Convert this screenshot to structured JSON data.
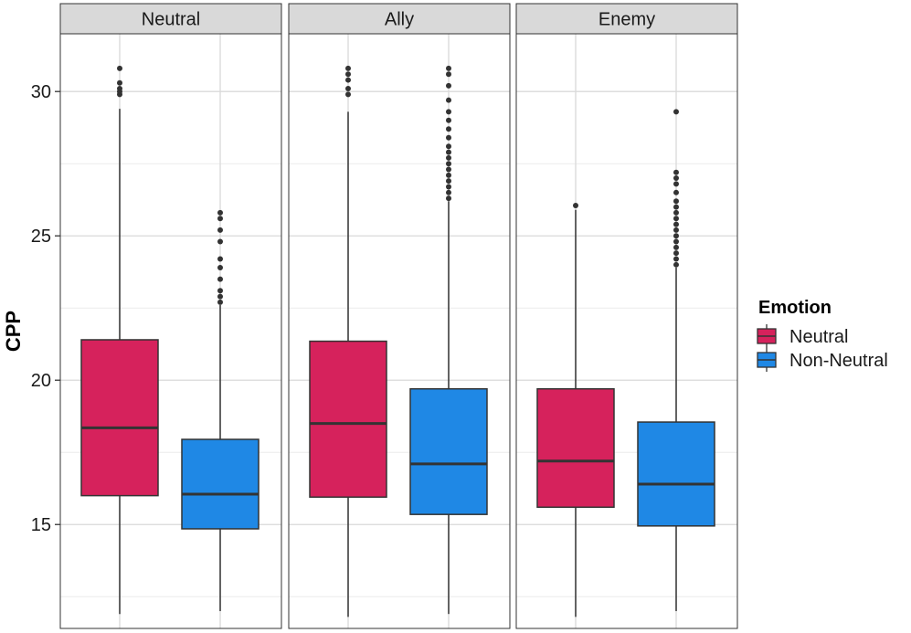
{
  "chart_data": {
    "type": "boxplot",
    "ylabel": "CPP",
    "xlabel": "",
    "ylim": [
      11.4,
      32.0
    ],
    "yticks": [
      15,
      20,
      25,
      30
    ],
    "grid": true,
    "legend": {
      "title": "Emotion",
      "position": "right",
      "entries": [
        {
          "name": "Neutral",
          "color": "#d6225c"
        },
        {
          "name": "Non-Neutral",
          "color": "#1f88e5"
        }
      ]
    },
    "colors": {
      "Neutral": "#d6225c",
      "Non-Neutral": "#1f88e5",
      "strip_background": "#d9d9d9",
      "grid": "#d9d9d9",
      "border": "#333333"
    },
    "panels": [
      {
        "label": "Neutral",
        "boxes": [
          {
            "group": "Neutral",
            "min": 11.9,
            "q1": 16.0,
            "median": 18.35,
            "q3": 21.4,
            "max": 29.4,
            "outliers": [
              29.9,
              30.0,
              30.1,
              30.3,
              30.8
            ]
          },
          {
            "group": "Non-Neutral",
            "min": 12.0,
            "q1": 14.85,
            "median": 16.05,
            "q3": 17.95,
            "max": 22.6,
            "outliers": [
              22.7,
              22.9,
              23.1,
              23.5,
              23.9,
              24.2,
              24.8,
              25.2,
              25.6,
              25.8
            ]
          }
        ]
      },
      {
        "label": "Ally",
        "boxes": [
          {
            "group": "Neutral",
            "min": 11.8,
            "q1": 15.95,
            "median": 18.5,
            "q3": 21.35,
            "max": 29.3,
            "outliers": [
              29.9,
              30.1,
              30.4,
              30.6,
              30.8
            ]
          },
          {
            "group": "Non-Neutral",
            "min": 11.9,
            "q1": 15.35,
            "median": 17.1,
            "q3": 19.7,
            "max": 26.2,
            "outliers": [
              26.3,
              26.5,
              26.7,
              26.9,
              27.1,
              27.3,
              27.5,
              27.7,
              27.9,
              28.1,
              28.4,
              28.7,
              29.0,
              29.3,
              29.7,
              30.2,
              30.6,
              30.8
            ]
          }
        ]
      },
      {
        "label": "Enemy",
        "boxes": [
          {
            "group": "Neutral",
            "min": 11.8,
            "q1": 15.6,
            "median": 17.2,
            "q3": 19.7,
            "max": 25.9,
            "outliers": [
              26.05
            ]
          },
          {
            "group": "Non-Neutral",
            "min": 12.0,
            "q1": 14.95,
            "median": 16.4,
            "q3": 18.55,
            "max": 23.9,
            "outliers": [
              24.0,
              24.2,
              24.4,
              24.6,
              24.8,
              25.0,
              25.2,
              25.4,
              25.6,
              25.8,
              26.0,
              26.2,
              26.5,
              26.8,
              27.0,
              27.2,
              29.3
            ]
          }
        ]
      }
    ]
  }
}
